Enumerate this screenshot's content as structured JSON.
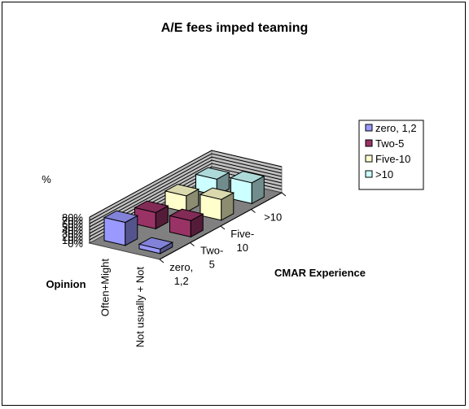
{
  "chart_data": {
    "type": "bar",
    "variant": "3d-clustered-column",
    "title": "A/E fees imped teaming",
    "zlabel": "%",
    "xlabel": "Opinion",
    "depth_label": "CMAR Experience",
    "categories": [
      "Often+Might",
      "Not usually + Not"
    ],
    "depth_tick_labels": [
      [
        "zero,",
        "1,2"
      ],
      [
        "Two-",
        "5"
      ],
      [
        "Five-",
        "10"
      ],
      [
        ">10"
      ]
    ],
    "ticks": [
      "0%",
      "10%",
      "20%",
      "30%",
      "40%",
      "50%",
      "60%",
      "70%",
      "80%"
    ],
    "zlim": [
      0,
      80
    ],
    "grid": true,
    "legend_position": "right",
    "series": [
      {
        "name": "zero, 1,2",
        "color": "#9999ff",
        "values": [
          71,
          14
        ]
      },
      {
        "name": "Two-5",
        "color": "#993366",
        "values": [
          50,
          50
        ]
      },
      {
        "name": "Five-10",
        "color": "#ffffcc",
        "values": [
          50,
          64
        ]
      },
      {
        "name": ">10",
        "color": "#ccffff",
        "values": [
          50,
          64
        ]
      }
    ]
  }
}
